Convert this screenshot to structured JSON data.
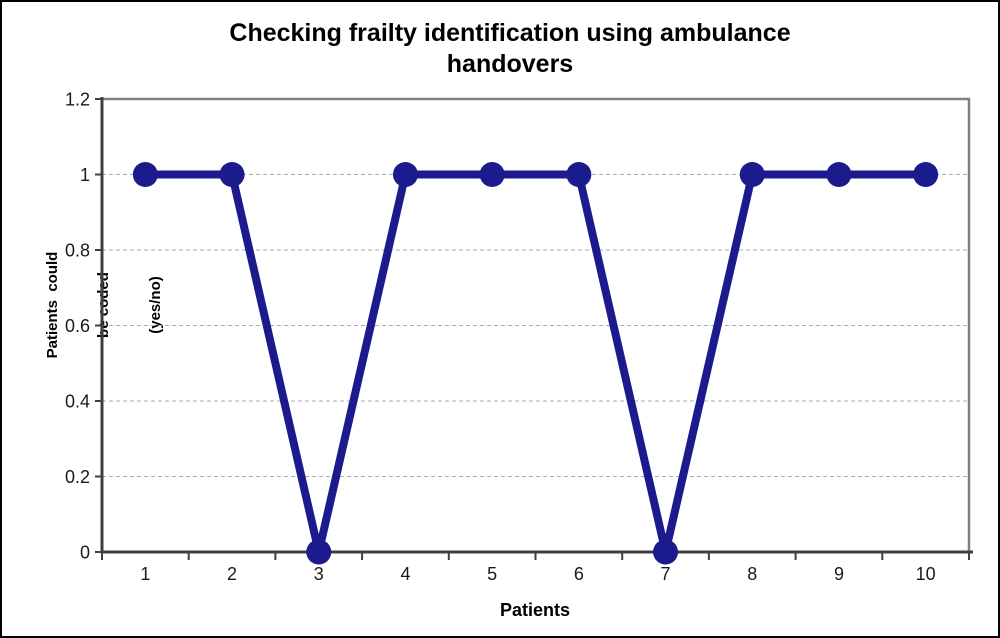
{
  "window": {
    "background": "#ffffff",
    "border_color": "#000000"
  },
  "chart_data": {
    "type": "line",
    "title": "Checking frailty identification using ambulance handovers",
    "xlabel": "Patients",
    "ylabel_lines": [
      "Patients  could",
      "be coded",
      "(yes/no)"
    ],
    "categories": [
      "1",
      "2",
      "3",
      "4",
      "5",
      "6",
      "7",
      "8",
      "9",
      "10"
    ],
    "values": [
      1,
      1,
      0,
      1,
      1,
      1,
      0,
      1,
      1,
      1
    ],
    "ylim": [
      0,
      1.2
    ],
    "yticks": [
      0,
      0.2,
      0.4,
      0.6,
      0.8,
      1,
      1.2
    ],
    "ytick_labels": [
      "0",
      "0.2",
      "0.4",
      "0.6",
      "0.8",
      "1",
      "1.2"
    ],
    "grid": "horizontal-dashed",
    "legend": "none",
    "line_color": "#1b1b8e",
    "marker": "circle",
    "marker_color": "#1b1b8e"
  },
  "colors": {
    "plot_border": "#808080",
    "axis": "#3f3f3f",
    "gridline": "#ababab",
    "tick_text": "#1a1a1a"
  }
}
